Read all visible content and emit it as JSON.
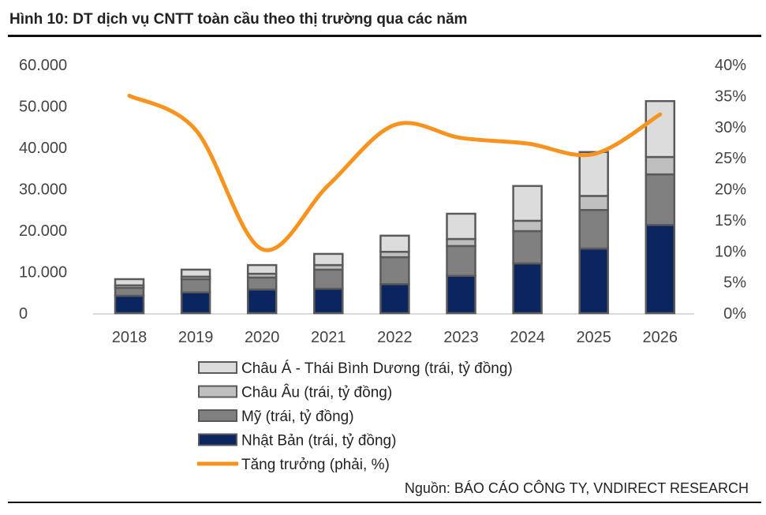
{
  "title": "Hình 10: DT dịch vụ CNTT toàn cầu theo thị trường qua các năm",
  "source": "Nguồn: BÁO CÁO CÔNG TY, VNDIRECT RESEARCH",
  "chart_data": {
    "type": "bar",
    "stacked": true,
    "categories": [
      "2018",
      "2019",
      "2020",
      "2021",
      "2022",
      "2023",
      "2024",
      "2025",
      "2026"
    ],
    "series": [
      {
        "name": "Nhật Bản (trái, tỷ đồng)",
        "axis": "left",
        "color": "#0a2560",
        "values": [
          4200,
          5000,
          5700,
          5900,
          7000,
          9000,
          12000,
          15600,
          21300
        ]
      },
      {
        "name": "Mỹ (trái, tỷ đồng)",
        "axis": "left",
        "color": "#808080",
        "values": [
          1900,
          3200,
          2900,
          4600,
          6500,
          7200,
          7800,
          9300,
          12200
        ]
      },
      {
        "name": "Châu Âu (trái, tỷ đồng)",
        "axis": "left",
        "color": "#bfbfbf",
        "values": [
          600,
          600,
          900,
          1100,
          1300,
          1700,
          2500,
          3400,
          4200
        ]
      },
      {
        "name": "Châu Á - Thái Bình Dương (trái, tỷ đồng)",
        "axis": "left",
        "color": "#dcdcdc",
        "values": [
          1500,
          1700,
          2100,
          2700,
          3900,
          6100,
          8400,
          10600,
          13500
        ]
      },
      {
        "name": "Tăng trưởng (phải, %)",
        "axis": "right",
        "type": "line",
        "color": "#f7931e",
        "values": [
          35,
          29.5,
          10.3,
          20.6,
          30.3,
          28.2,
          27.3,
          25.6,
          32
        ]
      }
    ],
    "left_axis": {
      "ticks": [
        "0",
        "10.000",
        "20.000",
        "30.000",
        "40.000",
        "50.000",
        "60.000"
      ],
      "ylim": [
        0,
        60000
      ]
    },
    "right_axis": {
      "ticks": [
        "0%",
        "5%",
        "10%",
        "15%",
        "20%",
        "25%",
        "30%",
        "35%",
        "40%"
      ],
      "ylim": [
        0,
        40
      ]
    },
    "legend_order": [
      3,
      2,
      1,
      0,
      4
    ],
    "legend_position": "bottom-left"
  }
}
